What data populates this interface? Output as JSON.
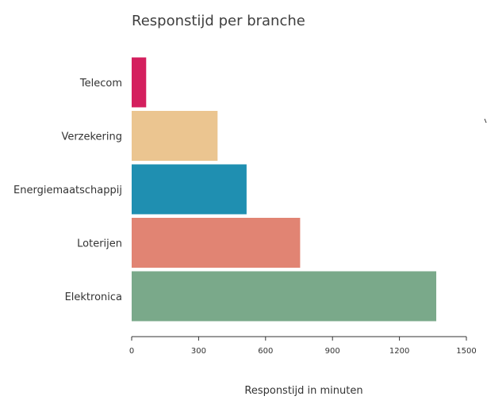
{
  "chart_data": {
    "type": "bar",
    "orientation": "horizontal",
    "title": "Responstijd per branche",
    "xlabel": "Responstijd in minuten",
    "ylabel": "",
    "categories": [
      "Telecom",
      "Verzekering",
      "Energiemaatschappij",
      "Loterijen",
      "Elektronica"
    ],
    "values": [
      65,
      385,
      515,
      755,
      1365
    ],
    "colors": [
      "#d41f5e",
      "#ebc590",
      "#1f8fb1",
      "#e18473",
      "#7aa98a"
    ],
    "xlim": [
      0,
      1500
    ],
    "xticks": [
      0,
      300,
      600,
      900,
      1200,
      1500
    ],
    "grid": false,
    "legend": "none"
  }
}
